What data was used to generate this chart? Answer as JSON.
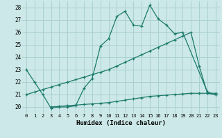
{
  "xlabel": "Humidex (Indice chaleur)",
  "background_color": "#cce8e8",
  "grid_color": "#aad0d0",
  "line_color": "#1a7a6a",
  "xlim": [
    -0.5,
    23.5
  ],
  "ylim": [
    19.5,
    28.5
  ],
  "xticks": [
    0,
    1,
    2,
    3,
    4,
    5,
    6,
    7,
    8,
    9,
    10,
    11,
    12,
    13,
    14,
    15,
    16,
    17,
    18,
    19,
    20,
    21,
    22,
    23
  ],
  "yticks": [
    20,
    21,
    22,
    23,
    24,
    25,
    26,
    27,
    28
  ],
  "lines": [
    {
      "x": [
        0,
        1,
        2,
        3,
        4,
        5,
        6,
        7,
        8,
        9,
        10,
        11,
        12,
        13,
        14,
        15,
        16,
        17,
        18,
        19,
        22,
        23
      ],
      "y": [
        23.0,
        22.0,
        21.0,
        19.9,
        20.0,
        20.0,
        20.1,
        21.5,
        22.3,
        24.9,
        25.5,
        27.3,
        27.7,
        26.6,
        26.5,
        28.2,
        27.1,
        26.6,
        25.9,
        26.0,
        21.2,
        21.0
      ]
    },
    {
      "x": [
        0,
        1,
        2,
        3,
        4,
        5,
        6,
        7,
        8,
        9,
        10,
        11,
        12,
        13,
        14,
        15,
        16,
        17,
        18,
        19,
        20,
        21,
        22,
        23
      ],
      "y": [
        21.0,
        21.2,
        21.4,
        21.6,
        21.8,
        22.0,
        22.2,
        22.4,
        22.6,
        22.8,
        23.0,
        23.3,
        23.6,
        23.9,
        24.2,
        24.5,
        24.8,
        25.1,
        25.4,
        25.7,
        26.0,
        23.3,
        21.1,
        21.0
      ]
    },
    {
      "x": [
        3,
        4,
        5,
        6,
        7,
        8,
        9,
        10,
        11,
        12,
        13,
        14,
        15,
        16,
        17,
        18,
        19,
        20,
        21,
        22,
        23
      ],
      "y": [
        20.0,
        20.05,
        20.1,
        20.15,
        20.2,
        20.25,
        20.3,
        20.35,
        20.45,
        20.55,
        20.65,
        20.75,
        20.85,
        20.9,
        20.95,
        21.0,
        21.05,
        21.1,
        21.1,
        21.1,
        21.1
      ]
    }
  ]
}
